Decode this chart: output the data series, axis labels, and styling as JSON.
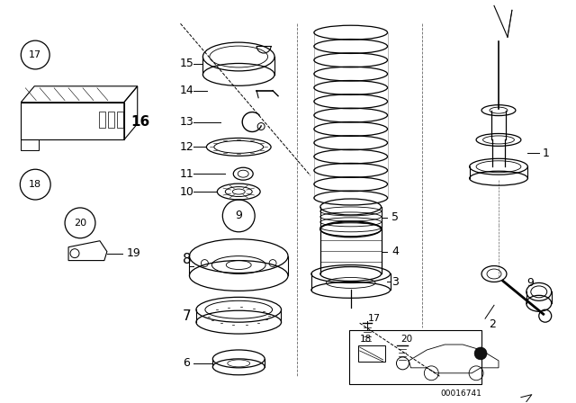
{
  "bg_color": "#ffffff",
  "line_color": "#000000",
  "diagram_id": "00016741",
  "fig_width": 6.4,
  "fig_height": 4.48,
  "dpi": 100
}
